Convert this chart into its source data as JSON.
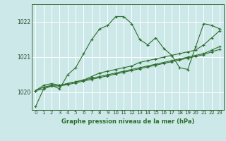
{
  "xlabel": "Graphe pression niveau de la mer (hPa)",
  "bg_color": "#cce8e8",
  "grid_color": "#ffffff",
  "line_color": "#2d6e2d",
  "series": [
    [
      1019.6,
      1020.1,
      1020.2,
      1020.1,
      1020.5,
      1020.7,
      1021.1,
      1021.5,
      1021.8,
      1021.9,
      1022.15,
      1022.15,
      1021.95,
      1021.5,
      1021.35,
      1021.55,
      1021.25,
      1021.05,
      1020.7,
      1020.65,
      1021.3,
      1021.95,
      1021.9,
      1021.8
    ],
    [
      1020.05,
      1020.2,
      1020.25,
      1020.2,
      1020.25,
      1020.3,
      1020.35,
      1020.45,
      1020.55,
      1020.6,
      1020.65,
      1020.7,
      1020.75,
      1020.85,
      1020.9,
      1020.95,
      1021.0,
      1021.05,
      1021.1,
      1021.15,
      1021.2,
      1021.35,
      1021.55,
      1021.75
    ],
    [
      1020.05,
      1020.15,
      1020.2,
      1020.2,
      1020.25,
      1020.3,
      1020.35,
      1020.4,
      1020.45,
      1020.5,
      1020.55,
      1020.6,
      1020.65,
      1020.7,
      1020.75,
      1020.8,
      1020.85,
      1020.9,
      1020.95,
      1021.0,
      1021.05,
      1021.1,
      1021.2,
      1021.3
    ],
    [
      1020.05,
      1020.1,
      1020.18,
      1020.18,
      1020.22,
      1020.27,
      1020.32,
      1020.37,
      1020.42,
      1020.47,
      1020.52,
      1020.57,
      1020.62,
      1020.67,
      1020.72,
      1020.77,
      1020.82,
      1020.87,
      1020.92,
      1020.97,
      1021.02,
      1021.07,
      1021.15,
      1021.22
    ]
  ],
  "ylim": [
    1019.5,
    1022.5
  ],
  "yticks": [
    1020,
    1021,
    1022
  ],
  "xticks": [
    0,
    1,
    2,
    3,
    4,
    5,
    6,
    7,
    8,
    9,
    10,
    11,
    12,
    13,
    14,
    15,
    16,
    17,
    18,
    19,
    20,
    21,
    22,
    23
  ]
}
